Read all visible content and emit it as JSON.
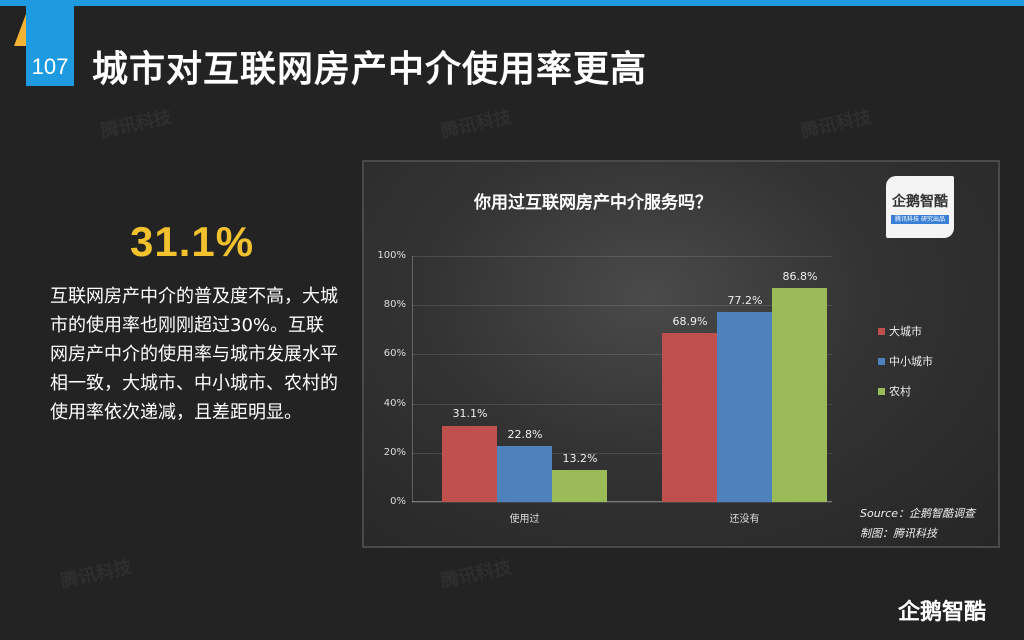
{
  "header": {
    "page_number": "107",
    "title": "城市对互联网房产中介使用率更高"
  },
  "summary": {
    "stat": "31.1%",
    "description": "互联网房产中介的普及度不高，大城市的使用率也刚刚超过30%。互联网房产中介的使用率与城市发展水平相一致，大城市、中小城市、农村的使用率依次递减，且差距明显。"
  },
  "chart_panel": {
    "logo_text": "企鹅智酷",
    "logo_subtext": "腾讯科技 研究出品",
    "source": "Source：企鹅智酷调查",
    "credit": "制图：腾讯科技"
  },
  "watermark": "腾讯科技",
  "brand": "企鹅智酷",
  "chart_data": {
    "type": "bar",
    "title": "你用过互联网房产中介服务吗？",
    "categories": [
      "使用过",
      "还没有"
    ],
    "series": [
      {
        "name": "大城市",
        "color": "#c0504d",
        "values": [
          31.1,
          68.9
        ]
      },
      {
        "name": "中小城市",
        "color": "#4f81bd",
        "values": [
          22.8,
          77.2
        ]
      },
      {
        "name": "农村",
        "color": "#9bbb59",
        "values": [
          13.2,
          86.8
        ]
      }
    ],
    "value_labels": [
      [
        "31.1%",
        "68.9%"
      ],
      [
        "22.8%",
        "77.2%"
      ],
      [
        "13.2%",
        "86.8%"
      ]
    ],
    "yticks": [
      "0%",
      "20%",
      "40%",
      "60%",
      "80%",
      "100%"
    ],
    "xlabel": "",
    "ylabel": "",
    "ylim": [
      0,
      100
    ],
    "grid": true,
    "legend_position": "right"
  }
}
